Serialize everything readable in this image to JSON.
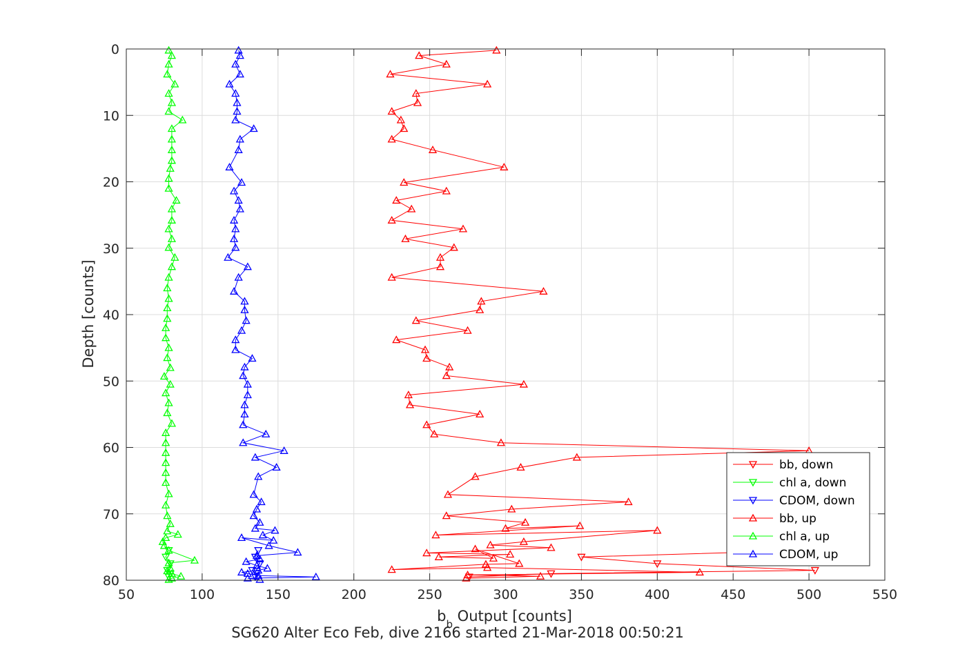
{
  "chart_data": {
    "type": "line",
    "title": "",
    "caption": "SG620 Alter Eco Feb, dive 2166 started 21-Mar-2018 00:50:21",
    "xlabel": {
      "main": "b",
      "sub": "b",
      "rest": " Output [counts]"
    },
    "ylabel": "Depth [counts]",
    "xlim": [
      50,
      550
    ],
    "ylim": [
      0,
      80
    ],
    "y_reversed": true,
    "grid": true,
    "xticks": [
      "50",
      "100",
      "150",
      "200",
      "250",
      "300",
      "350",
      "400",
      "450",
      "500",
      "550"
    ],
    "yticks": [
      "0",
      "10",
      "20",
      "30",
      "40",
      "50",
      "60",
      "70",
      "80"
    ],
    "legend_position": "bottom-right",
    "series": [
      {
        "name": "bb, down",
        "color": "#ff0000",
        "marker": "triangle-down",
        "points": [
          [
            500,
            75.5
          ],
          [
            350,
            76.5
          ],
          [
            400,
            77.5
          ],
          [
            504,
            78.5
          ],
          [
            330,
            79.0
          ],
          [
            276,
            79.5
          ]
        ]
      },
      {
        "name": "chl a, down",
        "color": "#00ff00",
        "marker": "triangle-down",
        "points": [
          [
            78,
            75.5
          ],
          [
            76,
            76.5
          ],
          [
            79,
            77.5
          ],
          [
            77,
            78.5
          ],
          [
            79,
            79.0
          ],
          [
            78,
            79.5
          ]
        ]
      },
      {
        "name": "CDOM, down",
        "color": "#0000ff",
        "marker": "triangle-down",
        "points": [
          [
            137,
            75.5
          ],
          [
            135,
            76.5
          ],
          [
            138,
            77.5
          ],
          [
            133,
            78.5
          ],
          [
            136,
            79.0
          ],
          [
            135,
            79.5
          ]
        ]
      },
      {
        "name": "bb, up",
        "color": "#ff0000",
        "marker": "triangle-up",
        "points": [
          [
            294,
            0.2
          ],
          [
            243,
            1.0
          ],
          [
            261,
            2.3
          ],
          [
            224,
            3.8
          ],
          [
            288,
            5.3
          ],
          [
            241,
            6.7
          ],
          [
            242,
            8.1
          ],
          [
            225,
            9.4
          ],
          [
            231,
            10.7
          ],
          [
            233,
            12.0
          ],
          [
            225,
            13.6
          ],
          [
            252,
            15.2
          ],
          [
            299,
            17.8
          ],
          [
            233,
            20.1
          ],
          [
            261,
            21.4
          ],
          [
            228,
            22.8
          ],
          [
            238,
            24.1
          ],
          [
            225,
            25.8
          ],
          [
            272,
            27.1
          ],
          [
            234,
            28.6
          ],
          [
            266,
            29.9
          ],
          [
            257,
            31.4
          ],
          [
            257,
            32.8
          ],
          [
            225,
            34.4
          ],
          [
            325,
            36.5
          ],
          [
            284,
            38.0
          ],
          [
            283,
            39.3
          ],
          [
            241,
            40.9
          ],
          [
            275,
            42.4
          ],
          [
            228,
            43.8
          ],
          [
            247,
            45.3
          ],
          [
            248,
            46.6
          ],
          [
            263,
            47.9
          ],
          [
            261,
            49.2
          ],
          [
            312,
            50.5
          ],
          [
            236,
            52.1
          ],
          [
            237,
            53.6
          ],
          [
            283,
            55.0
          ],
          [
            248,
            56.6
          ],
          [
            253,
            58.0
          ],
          [
            297,
            59.3
          ],
          [
            500,
            60.5
          ],
          [
            347,
            61.5
          ],
          [
            310,
            63.0
          ],
          [
            280,
            64.4
          ],
          [
            262,
            67.1
          ],
          [
            381,
            68.2
          ],
          [
            304,
            69.3
          ],
          [
            261,
            70.3
          ],
          [
            313,
            71.3
          ],
          [
            300,
            72.2
          ],
          [
            349,
            71.8
          ],
          [
            254,
            73.2
          ],
          [
            400,
            72.5
          ],
          [
            312,
            74.2
          ],
          [
            290,
            74.7
          ],
          [
            330,
            75.1
          ],
          [
            248,
            75.9
          ],
          [
            303,
            76.1
          ],
          [
            256,
            76.5
          ],
          [
            292,
            76.7
          ],
          [
            280,
            75.3
          ],
          [
            309,
            77.5
          ],
          [
            287,
            77.6
          ],
          [
            225,
            78.4
          ],
          [
            288,
            78.1
          ],
          [
            428,
            78.8
          ],
          [
            275,
            79.2
          ],
          [
            323,
            79.4
          ],
          [
            274,
            79.7
          ]
        ]
      },
      {
        "name": "chl a, up",
        "color": "#00ff00",
        "marker": "triangle-up",
        "points": [
          [
            78,
            0.2
          ],
          [
            80,
            1.0
          ],
          [
            78,
            2.3
          ],
          [
            77,
            3.8
          ],
          [
            82,
            5.3
          ],
          [
            78,
            6.7
          ],
          [
            80,
            8.1
          ],
          [
            78,
            9.4
          ],
          [
            87,
            10.7
          ],
          [
            80,
            12.0
          ],
          [
            80,
            13.6
          ],
          [
            80,
            15.2
          ],
          [
            80,
            16.8
          ],
          [
            79,
            18.0
          ],
          [
            78,
            19.5
          ],
          [
            78,
            21.0
          ],
          [
            83,
            22.8
          ],
          [
            80,
            24.1
          ],
          [
            80,
            25.8
          ],
          [
            78,
            27.1
          ],
          [
            80,
            28.6
          ],
          [
            78,
            29.9
          ],
          [
            82,
            31.4
          ],
          [
            80,
            32.8
          ],
          [
            78,
            34.4
          ],
          [
            77,
            36.0
          ],
          [
            78,
            37.6
          ],
          [
            77,
            39.0
          ],
          [
            77,
            40.6
          ],
          [
            76,
            42.0
          ],
          [
            76,
            43.5
          ],
          [
            78,
            45.0
          ],
          [
            77,
            46.5
          ],
          [
            79,
            48.0
          ],
          [
            75,
            49.3
          ],
          [
            79,
            50.5
          ],
          [
            76,
            51.8
          ],
          [
            78,
            53.3
          ],
          [
            77,
            54.8
          ],
          [
            80,
            56.4
          ],
          [
            76,
            57.8
          ],
          [
            76,
            59.3
          ],
          [
            76,
            60.8
          ],
          [
            76,
            62.3
          ],
          [
            76,
            63.8
          ],
          [
            76,
            65.3
          ],
          [
            78,
            67.0
          ],
          [
            76,
            68.7
          ],
          [
            77,
            70.3
          ],
          [
            79,
            71.5
          ],
          [
            77,
            72.6
          ],
          [
            84,
            73.1
          ],
          [
            76,
            73.6
          ],
          [
            74,
            74.2
          ],
          [
            75,
            74.8
          ],
          [
            78,
            75.5
          ],
          [
            95,
            77.0
          ],
          [
            78,
            77.4
          ],
          [
            79,
            78.2
          ],
          [
            77,
            78.6
          ],
          [
            80,
            79.0
          ],
          [
            86,
            79.4
          ],
          [
            80,
            79.7
          ],
          [
            78,
            79.9
          ]
        ]
      },
      {
        "name": "CDOM, up",
        "color": "#0000ff",
        "marker": "triangle-up",
        "points": [
          [
            124,
            0.2
          ],
          [
            125,
            1.0
          ],
          [
            122,
            2.3
          ],
          [
            125,
            3.8
          ],
          [
            118,
            5.3
          ],
          [
            122,
            6.7
          ],
          [
            123,
            8.1
          ],
          [
            123,
            9.4
          ],
          [
            122,
            10.7
          ],
          [
            134,
            12.0
          ],
          [
            125,
            13.6
          ],
          [
            124,
            15.2
          ],
          [
            118,
            17.8
          ],
          [
            126,
            20.1
          ],
          [
            121,
            21.4
          ],
          [
            124,
            22.8
          ],
          [
            125,
            24.1
          ],
          [
            121,
            25.8
          ],
          [
            122,
            27.1
          ],
          [
            121,
            28.6
          ],
          [
            122,
            29.9
          ],
          [
            117,
            31.4
          ],
          [
            130,
            32.8
          ],
          [
            124,
            34.4
          ],
          [
            121,
            36.5
          ],
          [
            128,
            38.0
          ],
          [
            128,
            39.3
          ],
          [
            129,
            40.9
          ],
          [
            126,
            42.4
          ],
          [
            122,
            43.8
          ],
          [
            122,
            45.3
          ],
          [
            133,
            46.6
          ],
          [
            128,
            47.9
          ],
          [
            127,
            49.2
          ],
          [
            130,
            50.5
          ],
          [
            130,
            52.1
          ],
          [
            128,
            53.6
          ],
          [
            128,
            55.0
          ],
          [
            127,
            56.6
          ],
          [
            142,
            58.0
          ],
          [
            127,
            59.3
          ],
          [
            154,
            60.5
          ],
          [
            135,
            61.5
          ],
          [
            149,
            63.0
          ],
          [
            137,
            64.4
          ],
          [
            134,
            67.1
          ],
          [
            139,
            68.2
          ],
          [
            136,
            69.3
          ],
          [
            134,
            70.3
          ],
          [
            138,
            71.3
          ],
          [
            135,
            72.2
          ],
          [
            148,
            72.5
          ],
          [
            140,
            73.2
          ],
          [
            147,
            74.0
          ],
          [
            126,
            73.6
          ],
          [
            144,
            74.8
          ],
          [
            163,
            75.8
          ],
          [
            136,
            76.3
          ],
          [
            138,
            76.8
          ],
          [
            129,
            77.2
          ],
          [
            136,
            77.8
          ],
          [
            143,
            78.2
          ],
          [
            137,
            78.5
          ],
          [
            126,
            78.8
          ],
          [
            130,
            79.0
          ],
          [
            137,
            79.3
          ],
          [
            175,
            79.5
          ],
          [
            130,
            79.7
          ],
          [
            138,
            79.9
          ]
        ]
      }
    ]
  }
}
